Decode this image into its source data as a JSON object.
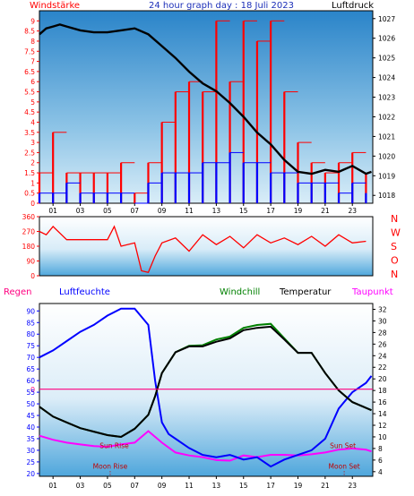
{
  "chart_data": [
    {
      "type": "line",
      "title": "24 hour graph day : 18 Juli 2023",
      "left_axis_label": "Windstärke",
      "right_axis_label": "Luftdruck",
      "left_ticks": [
        "0",
        "0.5",
        "1",
        "1.5",
        "2",
        "2.5",
        "3",
        "3.5",
        "4",
        "4.5",
        "5",
        "5.5",
        "6",
        "6.5",
        "7",
        "7.5",
        "8",
        "8.5",
        "9"
      ],
      "right_ticks": [
        "1018",
        "1019",
        "1020",
        "1021",
        "1022",
        "1023",
        "1024",
        "1025",
        "1026",
        "1027"
      ],
      "x_ticks": [
        "01",
        "03",
        "05",
        "07",
        "09",
        "11",
        "13",
        "15",
        "17",
        "19",
        "21",
        "23"
      ],
      "xlim": [
        0,
        24.5
      ],
      "ylim_left": [
        0,
        9.5
      ],
      "ylim_right": [
        1017.6,
        1027.4
      ],
      "series": [
        {
          "name": "Luftdruck",
          "color": "#000000",
          "axis": "right",
          "x": [
            0,
            0.5,
            1,
            1.5,
            2,
            3,
            4,
            5,
            6,
            7,
            8,
            9,
            10,
            11,
            12,
            13,
            14,
            15,
            16,
            17,
            18,
            19,
            20,
            21,
            22,
            23,
            24,
            24.4
          ],
          "y": [
            1026.2,
            1026.5,
            1026.6,
            1026.7,
            1026.6,
            1026.4,
            1026.3,
            1026.3,
            1026.4,
            1026.5,
            1026.2,
            1025.6,
            1025.0,
            1024.3,
            1023.7,
            1023.3,
            1022.7,
            1022.0,
            1021.2,
            1020.6,
            1019.8,
            1019.2,
            1019.1,
            1019.3,
            1019.2,
            1019.5,
            1019.1,
            1019.2
          ]
        },
        {
          "name": "Windgeschwindigkeit",
          "color": "#0000ff",
          "axis": "left",
          "x": [
            0,
            1,
            2,
            3,
            4,
            5,
            6,
            7,
            8,
            9,
            10,
            11,
            12,
            13,
            14,
            15,
            16,
            17,
            18,
            19,
            20,
            21,
            22,
            23,
            24
          ],
          "y": [
            0.5,
            0.5,
            1.0,
            0.5,
            0.5,
            0.5,
            0.5,
            0.0,
            1.0,
            1.5,
            1.5,
            1.5,
            2.0,
            2.0,
            2.5,
            2.0,
            2.0,
            1.5,
            1.5,
            1.0,
            1.0,
            1.0,
            0.5,
            1.0,
            0.5
          ]
        },
        {
          "name": "Windböen",
          "color": "#ff0000",
          "axis": "left",
          "x": [
            0,
            1,
            2,
            3,
            4,
            5,
            6,
            7,
            8,
            9,
            10,
            11,
            12,
            13,
            14,
            15,
            16,
            17,
            18,
            19,
            20,
            21,
            22,
            23,
            24
          ],
          "y": [
            1.5,
            3.5,
            1.5,
            1.5,
            1.5,
            1.5,
            2.0,
            0.5,
            2.0,
            4.0,
            5.5,
            6.0,
            5.5,
            9.0,
            6.0,
            9.0,
            8.0,
            9.0,
            5.5,
            3.0,
            2.0,
            1.5,
            2.0,
            2.5,
            1.5
          ]
        }
      ]
    },
    {
      "type": "line",
      "title": "",
      "left_ticks": [
        "0",
        "90",
        "180",
        "270",
        "360"
      ],
      "right_labels": [
        "N",
        "W",
        "S",
        "O",
        "N"
      ],
      "ylim": [
        0,
        360
      ],
      "series": [
        {
          "name": "Windrichtung",
          "color": "#ff0000",
          "x": [
            0,
            0.5,
            1,
            2,
            3,
            4,
            5,
            5.5,
            6,
            7,
            7.5,
            8,
            8.5,
            9,
            10,
            11,
            12,
            13,
            14,
            15,
            16,
            17,
            18,
            19,
            20,
            21,
            22,
            23,
            24
          ],
          "y": [
            270,
            250,
            300,
            220,
            220,
            220,
            220,
            300,
            180,
            200,
            30,
            20,
            120,
            200,
            230,
            150,
            250,
            190,
            240,
            170,
            250,
            200,
            230,
            190,
            240,
            180,
            250,
            200,
            210
          ]
        }
      ]
    },
    {
      "type": "line",
      "title": "",
      "legend": [
        "Regen",
        "Luftfeuchte",
        "Windchill",
        "Temperatur",
        "Taupunkt"
      ],
      "left_ticks": [
        "20",
        "25",
        "30",
        "35",
        "40",
        "45",
        "50",
        "55",
        "60",
        "65",
        "70",
        "75",
        "80",
        "85",
        "90"
      ],
      "right_ticks": [
        "4",
        "6",
        "8",
        "10",
        "12",
        "14",
        "16",
        "18",
        "20",
        "22",
        "24",
        "26",
        "28",
        "30",
        "32"
      ],
      "zero_label": "0",
      "ylim_left": [
        18.8,
        93.2
      ],
      "ylim_right": [
        3.2,
        33.0
      ],
      "annotations": [
        {
          "text": "Sun Rise",
          "x": 5.5,
          "y": 8.5
        },
        {
          "text": "Sun Set",
          "x": 22.3,
          "y": 8.5
        },
        {
          "text": "Moon Rise",
          "x": 5.2,
          "y": 5.0
        },
        {
          "text": "Moon Set",
          "x": 22.4,
          "y": 5.0
        }
      ],
      "series": [
        {
          "name": "Luftfeuchte",
          "color": "#0000ff",
          "axis": "left",
          "x": [
            0,
            1,
            2,
            3,
            4,
            5,
            6,
            7,
            8,
            8.5,
            9,
            9.5,
            10,
            11,
            12,
            13,
            14,
            15,
            16,
            17,
            18,
            19,
            20,
            21,
            22,
            23,
            24,
            24.4
          ],
          "y": [
            70,
            73,
            77,
            81,
            84,
            88,
            91,
            91,
            84,
            60,
            42,
            37,
            35,
            31,
            28,
            27,
            28,
            26,
            27,
            23,
            26,
            28,
            30,
            35,
            48,
            55,
            59,
            62
          ]
        },
        {
          "name": "Temperatur",
          "color": "#000000",
          "axis": "right",
          "x": [
            0,
            1,
            2,
            3,
            4,
            5,
            6,
            7,
            8,
            8.5,
            9,
            10,
            11,
            12,
            13,
            14,
            15,
            16,
            17,
            18,
            19,
            20,
            21,
            22,
            23,
            24,
            24.4
          ],
          "y": [
            15.2,
            13.5,
            12.5,
            11.5,
            10.9,
            10.3,
            10.0,
            11.4,
            13.8,
            17.0,
            21.0,
            24.6,
            25.6,
            25.6,
            26.4,
            27.0,
            28.4,
            28.8,
            29.0,
            26.8,
            24.5,
            24.5,
            21.0,
            18.0,
            16.0,
            15.0,
            14.6
          ]
        },
        {
          "name": "Windchill",
          "color": "#008000",
          "axis": "right",
          "x": [
            0,
            1,
            2,
            3,
            4,
            5,
            6,
            7,
            8,
            8.5,
            9,
            10,
            11,
            12,
            13,
            14,
            15,
            16,
            17,
            18,
            19,
            20,
            21,
            22,
            23,
            24,
            24.4
          ],
          "y": [
            15.2,
            13.5,
            12.5,
            11.5,
            10.9,
            10.3,
            10.0,
            11.4,
            13.8,
            17.0,
            21.0,
            24.6,
            25.7,
            25.8,
            26.8,
            27.3,
            28.8,
            29.3,
            29.5,
            27.0,
            24.5,
            24.5,
            21.0,
            18.0,
            16.0,
            15.0,
            14.6
          ]
        },
        {
          "name": "Taupunkt",
          "color": "#ff00ff",
          "axis": "right",
          "x": [
            0,
            1,
            2,
            3,
            4,
            5,
            6,
            7,
            8,
            9,
            10,
            11,
            12,
            13,
            14,
            15,
            16,
            17,
            18,
            19,
            20,
            21,
            22,
            23,
            24,
            24.4
          ],
          "y": [
            10.2,
            9.5,
            9.0,
            8.7,
            8.4,
            8.3,
            8.7,
            9.0,
            11.0,
            9.0,
            7.3,
            6.8,
            6.5,
            6.0,
            5.9,
            6.8,
            6.5,
            6.9,
            6.9,
            6.8,
            7.0,
            7.3,
            7.8,
            8.0,
            7.8,
            7.5
          ]
        },
        {
          "name": "Regen",
          "color": "#ff0080",
          "axis": "left",
          "x": [
            0,
            24.5
          ],
          "y": [
            56.3,
            56.3
          ]
        }
      ]
    }
  ]
}
